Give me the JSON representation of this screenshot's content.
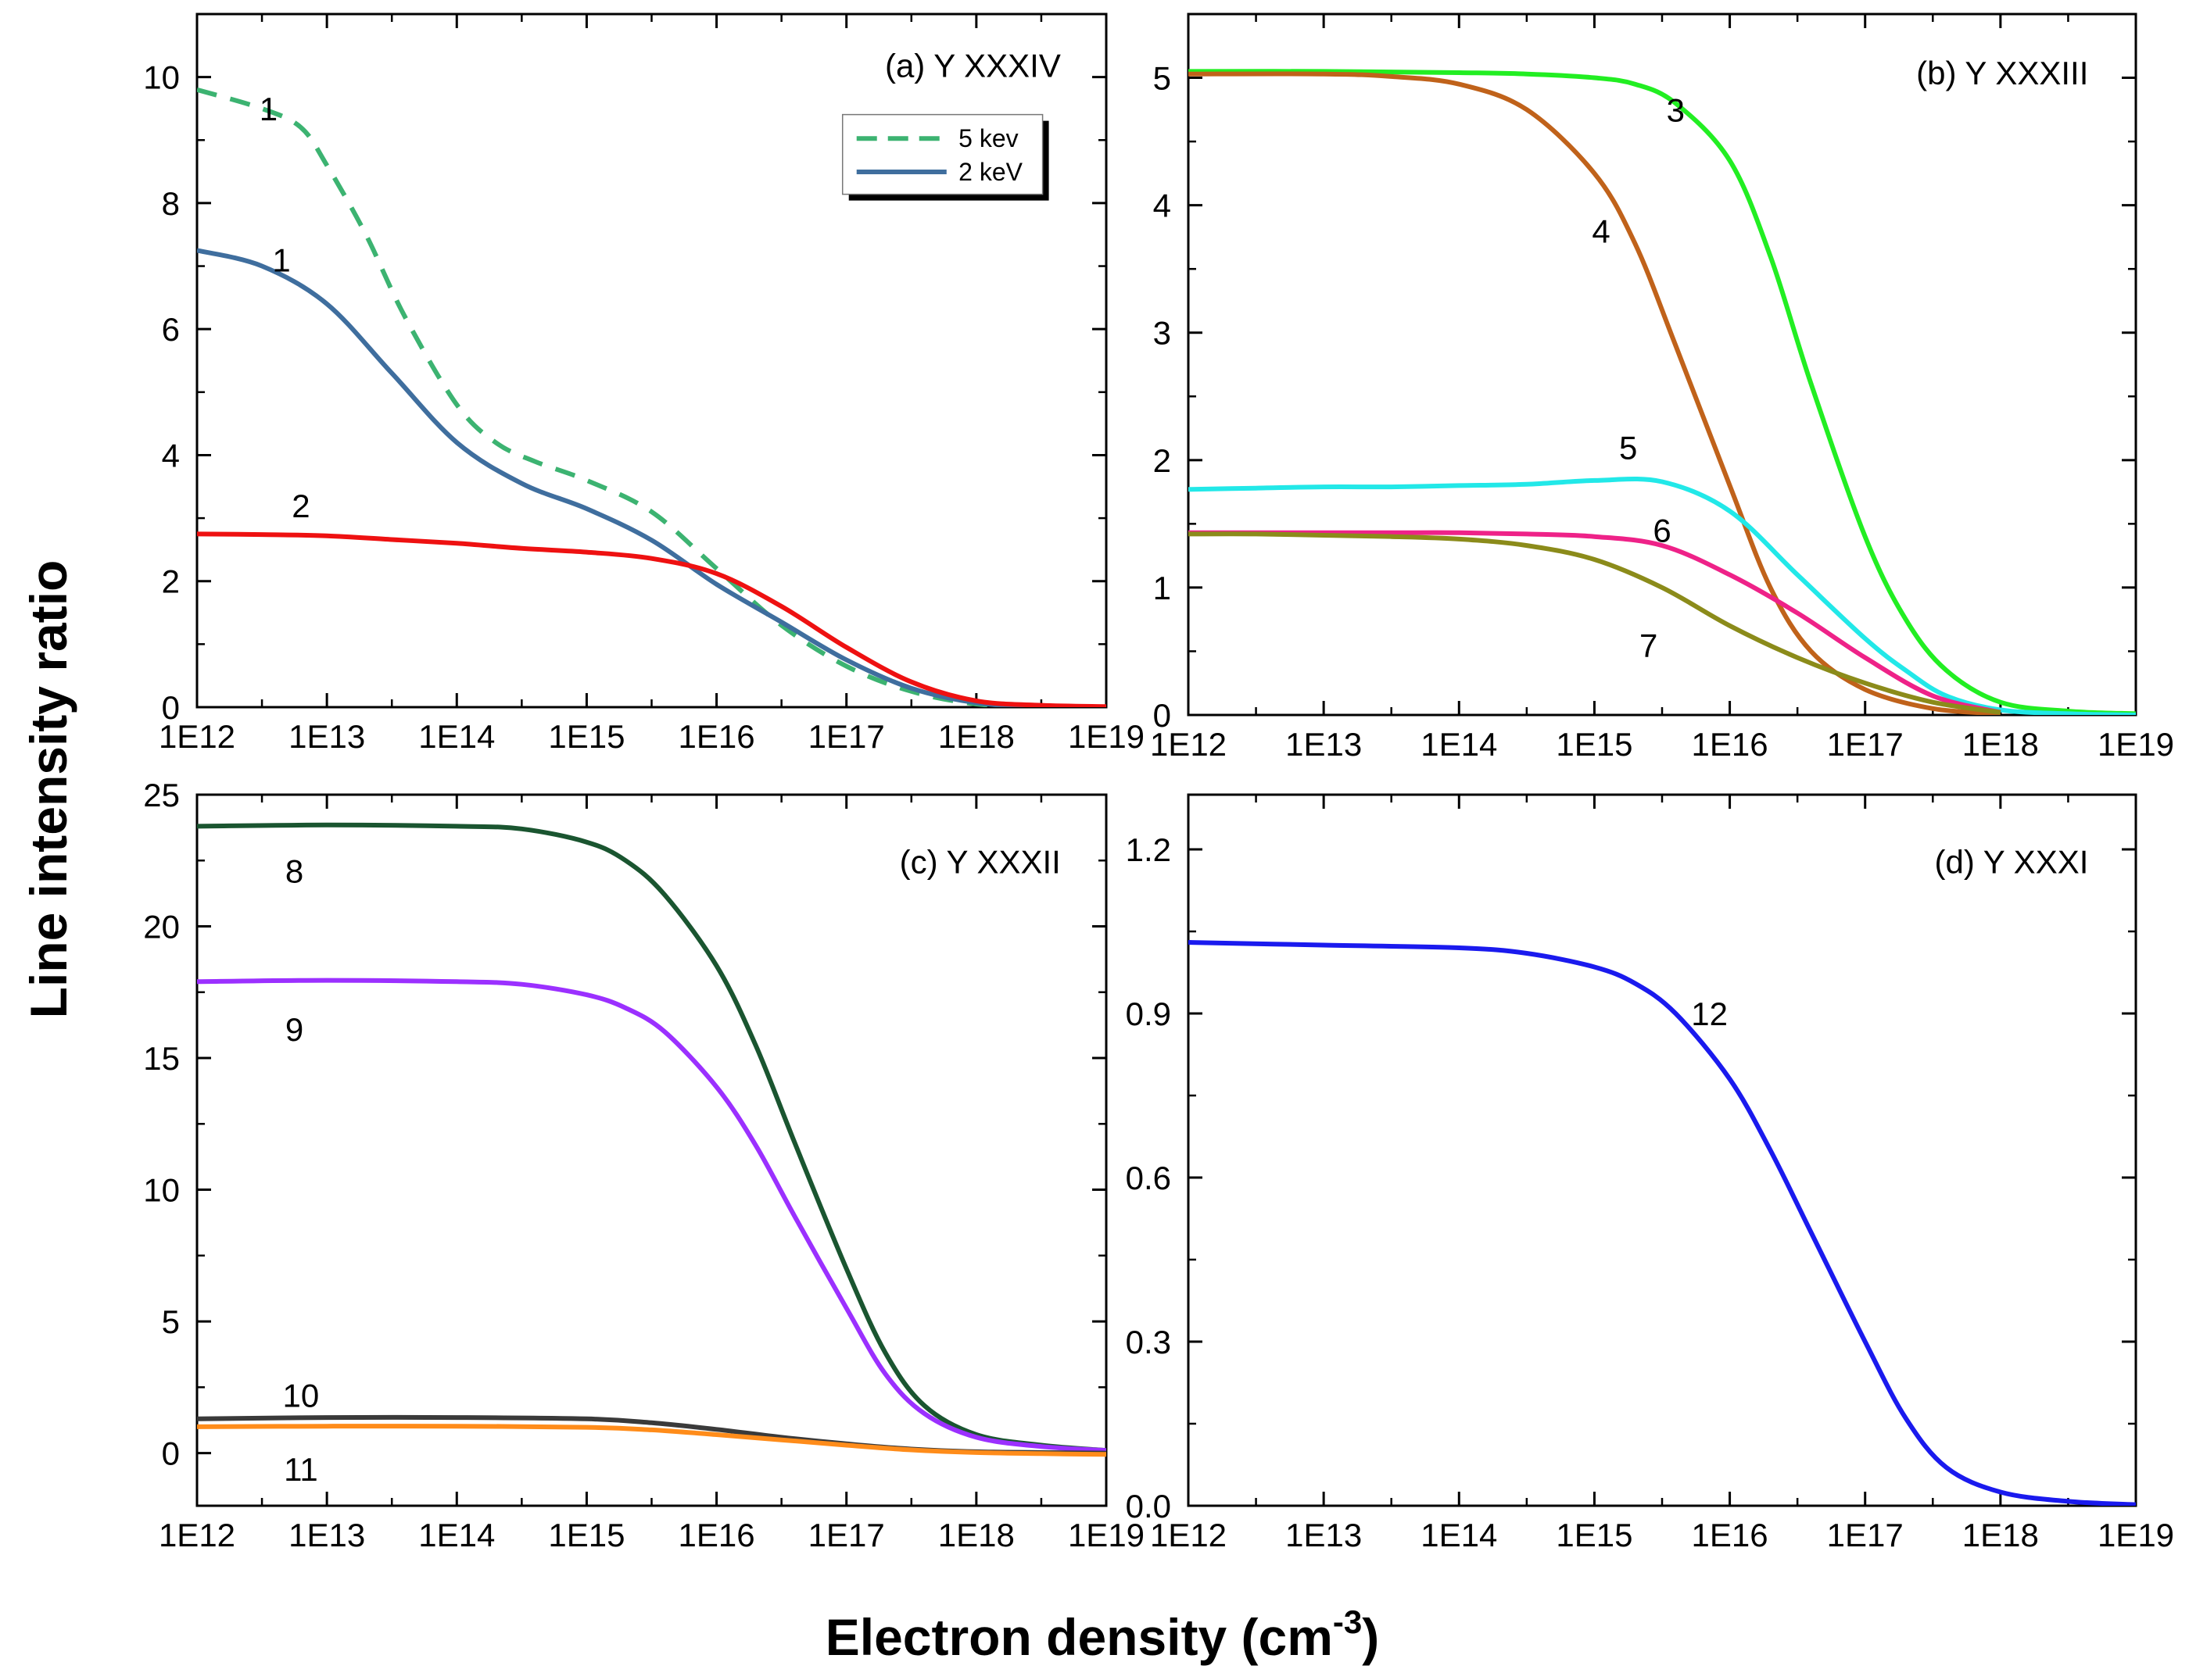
{
  "figure": {
    "ylabel": "Line intensity ratio",
    "xlabel_main": "Electron density (cm",
    "xlabel_sup": "-3",
    "xlabel_close": ")"
  },
  "colors": {
    "c1_5kev": "#3cb371",
    "c1_2kev": "#3f6e9e",
    "c2": "#ee1111",
    "c3": "#22ee22",
    "c4": "#c0621a",
    "c5": "#22e8e8",
    "c6": "#ee2288",
    "c7": "#8b8b1a",
    "c8": "#1a5530",
    "c9": "#9b30ff",
    "c10": "#3a3a3a",
    "c11": "#ff8c1a",
    "c12": "#1a1aee"
  },
  "chart_data": [
    {
      "id": "a",
      "type": "line",
      "title": "(a) Y XXXIV",
      "x_scale": "log",
      "xlim": [
        "1E12",
        "1E19"
      ],
      "x_ticks": [
        "1E12",
        "1E13",
        "1E14",
        "1E15",
        "1E16",
        "1E17",
        "1E18",
        "1E19"
      ],
      "ylim": [
        0,
        11
      ],
      "y_ticks": [
        0,
        2,
        4,
        6,
        8,
        10
      ],
      "y_tick_labels": [
        "0",
        "2",
        "4",
        "6",
        "8",
        "10"
      ],
      "legend": {
        "placement": "top-right",
        "entries": [
          {
            "label": "5 kev",
            "style": "dashed",
            "color_key": "c1_5kev"
          },
          {
            "label": "2 keV",
            "style": "solid",
            "color_key": "c1_2kev"
          }
        ]
      },
      "series": [
        {
          "label": "1",
          "color_key": "c1_5kev",
          "dashed": true,
          "label_at": [
            12.55,
            9.5
          ],
          "x": [
            12,
            12.5,
            12.8,
            13,
            13.3,
            13.6,
            14,
            14.3,
            14.6,
            15,
            15.5,
            16,
            16.5,
            17,
            17.5,
            18,
            18.5,
            19
          ],
          "y": [
            9.8,
            9.5,
            9.2,
            8.6,
            7.5,
            6.2,
            4.8,
            4.2,
            3.9,
            3.6,
            3.1,
            2.2,
            1.3,
            0.65,
            0.25,
            0.05,
            0.01,
            0
          ]
        },
        {
          "label": "1",
          "color_key": "c1_2kev",
          "label_at": [
            12.65,
            7.1
          ],
          "x": [
            12,
            12.5,
            13,
            13.5,
            14,
            14.5,
            15,
            15.5,
            16,
            16.5,
            17,
            17.5,
            18,
            18.5,
            19
          ],
          "y": [
            7.25,
            7.0,
            6.4,
            5.3,
            4.2,
            3.55,
            3.15,
            2.65,
            1.95,
            1.35,
            0.75,
            0.3,
            0.07,
            0.01,
            0
          ]
        },
        {
          "label": "2",
          "color_key": "c2",
          "label_at": [
            12.8,
            3.2
          ],
          "x": [
            12,
            12.5,
            13,
            13.5,
            14,
            14.5,
            15,
            15.5,
            16,
            16.5,
            17,
            17.5,
            18,
            18.5,
            19
          ],
          "y": [
            2.75,
            2.74,
            2.72,
            2.66,
            2.6,
            2.52,
            2.46,
            2.36,
            2.12,
            1.6,
            0.95,
            0.4,
            0.1,
            0.03,
            0.01
          ]
        }
      ]
    },
    {
      "id": "b",
      "type": "line",
      "title": "(b) Y XXXIII",
      "x_scale": "log",
      "xlim": [
        "1E12",
        "1E19"
      ],
      "x_ticks": [
        "1E12",
        "1E13",
        "1E14",
        "1E15",
        "1E16",
        "1E17",
        "1E18",
        "1E19"
      ],
      "ylim": [
        0,
        5.5
      ],
      "y_ticks": [
        0,
        1,
        2,
        3,
        4,
        5
      ],
      "y_tick_labels": [
        "0",
        "1",
        "2",
        "3",
        "4",
        "5"
      ],
      "series": [
        {
          "label": "3",
          "color_key": "c3",
          "label_at": [
            15.6,
            4.75
          ],
          "x": [
            12,
            13,
            14,
            14.5,
            15,
            15.3,
            15.6,
            16,
            16.3,
            16.6,
            17,
            17.3,
            17.6,
            18,
            18.5,
            19
          ],
          "y": [
            5.05,
            5.05,
            5.04,
            5.03,
            5.0,
            4.95,
            4.8,
            4.35,
            3.6,
            2.6,
            1.4,
            0.75,
            0.35,
            0.1,
            0.03,
            0.01
          ]
        },
        {
          "label": "4",
          "color_key": "c4",
          "label_at": [
            15.05,
            3.8
          ],
          "x": [
            12,
            13,
            13.5,
            14,
            14.5,
            15,
            15.3,
            15.6,
            16,
            16.3,
            16.6,
            17,
            17.5,
            18
          ],
          "y": [
            5.03,
            5.03,
            5.01,
            4.95,
            4.75,
            4.25,
            3.7,
            2.9,
            1.8,
            1.0,
            0.5,
            0.2,
            0.05,
            0.01
          ]
        },
        {
          "label": "5",
          "color_key": "c5",
          "label_at": [
            15.25,
            2.1
          ],
          "x": [
            12,
            12.5,
            13,
            13.5,
            14,
            14.5,
            15,
            15.5,
            16,
            16.5,
            17,
            17.3,
            17.6,
            18,
            18.5,
            19
          ],
          "y": [
            1.77,
            1.78,
            1.79,
            1.79,
            1.8,
            1.81,
            1.84,
            1.83,
            1.6,
            1.1,
            0.6,
            0.35,
            0.15,
            0.04,
            0.01,
            0
          ]
        },
        {
          "label": "6",
          "color_key": "c6",
          "label_at": [
            15.5,
            1.45
          ],
          "x": [
            12,
            12.5,
            13,
            13.5,
            14,
            14.5,
            15,
            15.5,
            16,
            16.5,
            17,
            17.5,
            18
          ],
          "y": [
            1.43,
            1.43,
            1.43,
            1.43,
            1.43,
            1.42,
            1.4,
            1.33,
            1.1,
            0.8,
            0.45,
            0.15,
            0.02
          ]
        },
        {
          "label": "7",
          "color_key": "c7",
          "label_at": [
            15.4,
            0.55
          ],
          "x": [
            12,
            12.5,
            13,
            13.5,
            14,
            14.5,
            15,
            15.5,
            16,
            16.5,
            17,
            17.5,
            18
          ],
          "y": [
            1.42,
            1.42,
            1.41,
            1.4,
            1.38,
            1.33,
            1.22,
            1.0,
            0.7,
            0.45,
            0.25,
            0.1,
            0.02
          ]
        }
      ]
    },
    {
      "id": "c",
      "type": "line",
      "title": "(c) Y XXXII",
      "x_scale": "log",
      "xlim": [
        "1E12",
        "1E19"
      ],
      "x_ticks": [
        "1E12",
        "1E13",
        "1E14",
        "1E15",
        "1E16",
        "1E17",
        "1E18",
        "1E19"
      ],
      "ylim": [
        -2,
        25
      ],
      "y_ticks": [
        0,
        5,
        10,
        15,
        20,
        25
      ],
      "y_tick_labels": [
        "0",
        "5",
        "10",
        "15",
        "20",
        "25"
      ],
      "series": [
        {
          "label": "8",
          "color_key": "c8",
          "label_at": [
            12.75,
            22.1
          ],
          "x": [
            12,
            13,
            14,
            14.5,
            15,
            15.3,
            15.6,
            16,
            16.3,
            16.6,
            17,
            17.3,
            17.6,
            18,
            18.5,
            19
          ],
          "y": [
            23.8,
            23.85,
            23.8,
            23.7,
            23.2,
            22.5,
            21.2,
            18.5,
            15.5,
            11.8,
            7.0,
            3.8,
            1.8,
            0.7,
            0.3,
            0.1
          ]
        },
        {
          "label": "9",
          "color_key": "c9",
          "label_at": [
            12.75,
            16.1
          ],
          "x": [
            12,
            13,
            14,
            14.5,
            15,
            15.3,
            15.6,
            16,
            16.3,
            16.6,
            17,
            17.3,
            17.6,
            18,
            18.5,
            19
          ],
          "y": [
            17.9,
            17.95,
            17.9,
            17.8,
            17.4,
            16.9,
            16.0,
            13.9,
            11.7,
            9.0,
            5.5,
            3.0,
            1.5,
            0.6,
            0.25,
            0.1
          ]
        },
        {
          "label": "10",
          "color_key": "c10",
          "label_at": [
            12.8,
            2.2
          ],
          "x": [
            12,
            13,
            14,
            15,
            15.5,
            16,
            16.5,
            17,
            17.5,
            18,
            18.5,
            19
          ],
          "y": [
            1.3,
            1.35,
            1.35,
            1.3,
            1.15,
            0.9,
            0.6,
            0.35,
            0.15,
            0.05,
            0.02,
            0
          ]
        },
        {
          "label": "11",
          "color_key": "c11",
          "label_at": [
            12.8,
            -0.6
          ],
          "x": [
            12,
            13,
            14,
            15,
            15.5,
            16,
            16.5,
            17,
            17.5,
            18,
            18.5,
            19
          ],
          "y": [
            1.0,
            1.02,
            1.02,
            0.98,
            0.88,
            0.7,
            0.5,
            0.3,
            0.12,
            0.02,
            -0.02,
            -0.05
          ]
        }
      ]
    },
    {
      "id": "d",
      "type": "line",
      "title": "(d) Y XXXI",
      "x_scale": "log",
      "xlim": [
        "1E12",
        "1E19"
      ],
      "x_ticks": [
        "1E12",
        "1E13",
        "1E14",
        "1E15",
        "1E16",
        "1E17",
        "1E18",
        "1E19"
      ],
      "ylim": [
        0,
        1.3
      ],
      "y_ticks": [
        0,
        0.3,
        0.6,
        0.9,
        1.2
      ],
      "y_tick_labels": [
        "0.0",
        "0.3",
        "0.6",
        "0.9",
        "1.2"
      ],
      "series": [
        {
          "label": "12",
          "color_key": "c12",
          "label_at": [
            15.85,
            0.9
          ],
          "x": [
            12,
            13,
            14,
            14.5,
            15,
            15.3,
            15.6,
            16,
            16.3,
            16.6,
            17,
            17.3,
            17.6,
            18,
            18.5,
            19
          ],
          "y": [
            1.03,
            1.025,
            1.02,
            1.01,
            0.985,
            0.955,
            0.9,
            0.78,
            0.65,
            0.5,
            0.3,
            0.16,
            0.07,
            0.025,
            0.008,
            0.002
          ]
        }
      ]
    }
  ]
}
